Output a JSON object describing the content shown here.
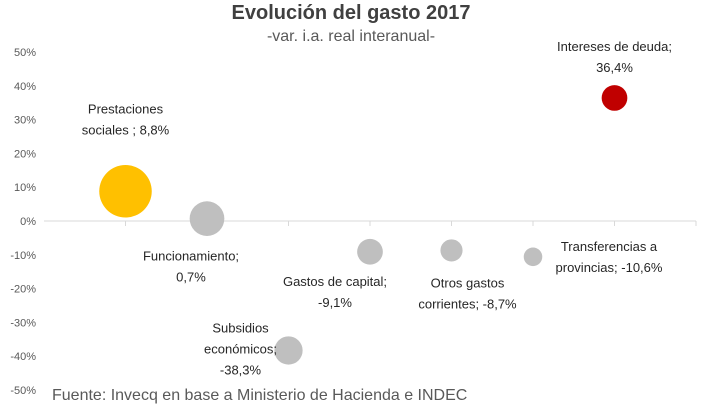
{
  "chart_data": {
    "type": "bubble",
    "title": "Evolución del gasto 2017",
    "subtitle": "-var. i.a. real interanual-",
    "ylabel": "",
    "xlabel": "",
    "ylim": [
      -50,
      50
    ],
    "ytick_step": 10,
    "yticks": [
      "50%",
      "40%",
      "30%",
      "20%",
      "10%",
      "0%",
      "-10%",
      "-20%",
      "-30%",
      "-40%",
      "-50%"
    ],
    "grid": false,
    "points": [
      {
        "x": 1,
        "y": 8.8,
        "size": 3.0,
        "color": "#ffc000",
        "label": [
          "Prestaciones",
          "sociales ; 8,8%"
        ]
      },
      {
        "x": 2,
        "y": 0.7,
        "size": 1.2,
        "color": "#bfbfbf",
        "label": [
          "Funcionamiento;",
          "0,7%"
        ]
      },
      {
        "x": 3,
        "y": -38.3,
        "size": 0.75,
        "color": "#bfbfbf",
        "label": [
          "Subsidios",
          "económicos;",
          "-38,3%"
        ]
      },
      {
        "x": 4,
        "y": -9.1,
        "size": 0.6,
        "color": "#bfbfbf",
        "label": [
          "Gastos de capital;",
          "-9,1%"
        ]
      },
      {
        "x": 5,
        "y": -8.7,
        "size": 0.42,
        "color": "#bfbfbf",
        "label": [
          "Otros gastos",
          "corrientes; -8,7%"
        ]
      },
      {
        "x": 6,
        "y": -10.6,
        "size": 0.27,
        "color": "#bfbfbf",
        "label": [
          "Transferencias a",
          "provincias; -10,6%"
        ]
      },
      {
        "x": 7,
        "y": 36.4,
        "size": 0.6,
        "color": "#c00000",
        "label": [
          "Intereses de deuda;",
          "36,4%"
        ]
      }
    ]
  },
  "source": "Fuente: Invecq en base a Ministerio de Hacienda e INDEC"
}
